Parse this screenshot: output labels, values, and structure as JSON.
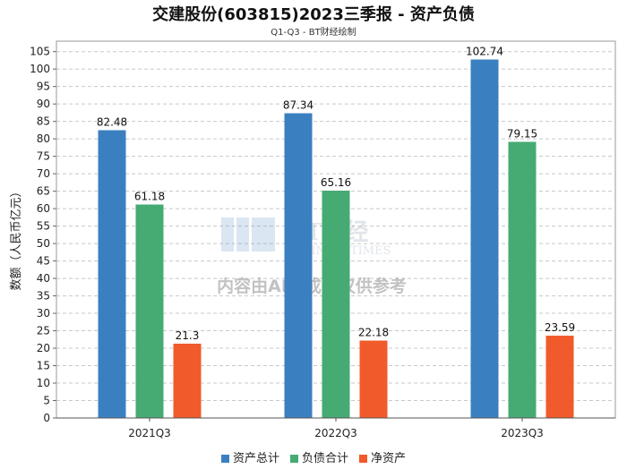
{
  "chart_data": {
    "type": "bar",
    "title": "交建股份(603815)2023三季报 - 资产负债",
    "subtitle": "Q1-Q3 - BT财经绘制",
    "ylabel": "数额（人民币亿元）",
    "xlabel": "",
    "categories": [
      "2021Q3",
      "2022Q3",
      "2023Q3"
    ],
    "ylim": [
      0,
      108
    ],
    "yticks": [
      0,
      5,
      10,
      15,
      20,
      25,
      30,
      35,
      40,
      45,
      50,
      55,
      60,
      65,
      70,
      75,
      80,
      85,
      90,
      95,
      100,
      105
    ],
    "grid": true,
    "legend_position": "bottom",
    "series": [
      {
        "name": "资产总计",
        "color": "#3a80c1",
        "values": [
          82.48,
          87.34,
          102.74
        ],
        "labels": [
          "82.48",
          "87.34",
          "102.74"
        ]
      },
      {
        "name": "负债合计",
        "color": "#46ab73",
        "values": [
          61.18,
          65.16,
          79.15
        ],
        "labels": [
          "61.18",
          "65.16",
          "79.15"
        ]
      },
      {
        "name": "净资产",
        "color": "#f15a2b",
        "values": [
          21.3,
          22.18,
          23.59
        ],
        "labels": [
          "21.3",
          "22.18",
          "23.59"
        ]
      }
    ]
  },
  "watermark": {
    "logo_text": "BT财经",
    "logo_subtext": "BUSINESSTIMES",
    "notice": "内容由AI生成，仅供参考"
  }
}
